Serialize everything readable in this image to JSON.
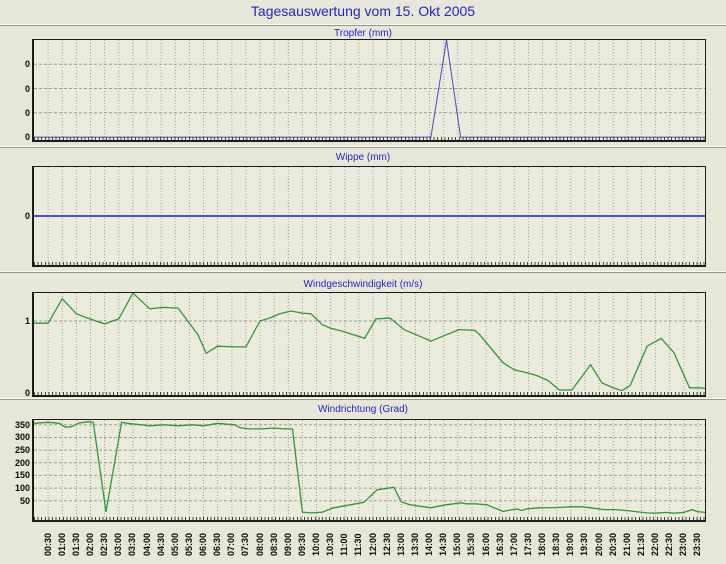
{
  "header": {
    "title": "Tagesauswertung vom 15. Okt 2005"
  },
  "colors": {
    "page_background": "#e7e7d9",
    "plot_background": "#ebebdd",
    "title_blue": "#2323cc",
    "rain_line_blue": "#4848cc",
    "wind_line_green": "#2e9939",
    "grid_grey": "#9c9c94",
    "axis_black": "#1c1c1c"
  },
  "x_axis": {
    "start_hour": 0.5,
    "step_hour": 0.5,
    "labels": [
      "00:30",
      "01:00",
      "01:30",
      "02:00",
      "02:30",
      "03:00",
      "03:30",
      "04:00",
      "04:30",
      "05:00",
      "05:30",
      "06:00",
      "06:30",
      "07:00",
      "07:30",
      "08:00",
      "08:30",
      "09:00",
      "09:30",
      "10:00",
      "10:30",
      "11:00",
      "11:30",
      "12:00",
      "12:30",
      "13:00",
      "13:30",
      "14:00",
      "14:30",
      "15:00",
      "15:30",
      "16:00",
      "16:30",
      "17:00",
      "17:30",
      "18:00",
      "18:30",
      "19:00",
      "19:30",
      "20:00",
      "20:30",
      "21:00",
      "21:30",
      "22:00",
      "22:30",
      "23:00",
      "23:30"
    ]
  },
  "chart_data": [
    {
      "type": "line",
      "name": "tropfer",
      "title": "Tropfer (mm)",
      "color": "#4848cc",
      "line_width": 1,
      "xlim": [
        0,
        23.75
      ],
      "ylim": [
        -0.012,
        0.4
      ],
      "yticks": [
        {
          "v": 0.3,
          "label": "0",
          "grid": true
        },
        {
          "v": 0.2,
          "label": "0",
          "grid": true
        },
        {
          "v": 0.1,
          "label": "0",
          "grid": true
        },
        {
          "v": 0.0,
          "label": "0",
          "grid": false
        }
      ],
      "points": [
        [
          0,
          0
        ],
        [
          14.05,
          0
        ],
        [
          14.6,
          0.4
        ],
        [
          15.1,
          0
        ],
        [
          23.75,
          0
        ]
      ]
    },
    {
      "type": "line",
      "name": "wippe",
      "title": "Wippe (mm)",
      "color": "#5050cc",
      "line_width": 2,
      "xlim": [
        0,
        23.75
      ],
      "ylim": [
        -1,
        1
      ],
      "yticks": [
        {
          "v": 0,
          "label": "0",
          "grid": false
        }
      ],
      "points": [
        [
          0,
          0
        ],
        [
          23.75,
          0
        ]
      ]
    },
    {
      "type": "line",
      "name": "windgeschwindigkeit",
      "title": "Windgeschwindigkeit (m/s)",
      "color": "#2e9939",
      "line_width": 1.3,
      "xlim": [
        0,
        23.75
      ],
      "ylim": [
        -0.03,
        1.39
      ],
      "yticks": [
        {
          "v": 1,
          "label": "1",
          "grid": true
        },
        {
          "v": 0,
          "label": "0",
          "grid": false
        }
      ],
      "points": [
        [
          0,
          0.97
        ],
        [
          0.5,
          0.97
        ],
        [
          1,
          1.31
        ],
        [
          1.5,
          1.1
        ],
        [
          1.9,
          1.04
        ],
        [
          2.5,
          0.96
        ],
        [
          3,
          1.03
        ],
        [
          3.5,
          1.39
        ],
        [
          4.1,
          1.17
        ],
        [
          4.6,
          1.19
        ],
        [
          5.1,
          1.18
        ],
        [
          5.8,
          0.81
        ],
        [
          6.1,
          0.55
        ],
        [
          6.5,
          0.65
        ],
        [
          7.1,
          0.64
        ],
        [
          7.5,
          0.64
        ],
        [
          8,
          1.0
        ],
        [
          8.4,
          1.05
        ],
        [
          8.7,
          1.1
        ],
        [
          9.1,
          1.14
        ],
        [
          9.5,
          1.11
        ],
        [
          9.8,
          1.1
        ],
        [
          10.2,
          0.95
        ],
        [
          10.5,
          0.9
        ],
        [
          10.9,
          0.86
        ],
        [
          11.7,
          0.76
        ],
        [
          12.1,
          1.03
        ],
        [
          12.6,
          1.04
        ],
        [
          12.7,
          1.01
        ],
        [
          13.1,
          0.88
        ],
        [
          14.05,
          0.72
        ],
        [
          15.04,
          0.88
        ],
        [
          15.6,
          0.87
        ],
        [
          15.75,
          0.82
        ],
        [
          16.6,
          0.42
        ],
        [
          17.0,
          0.32
        ],
        [
          17.45,
          0.28
        ],
        [
          17.8,
          0.24
        ],
        [
          18.2,
          0.17
        ],
        [
          18.6,
          0.04
        ],
        [
          19.04,
          0.04
        ],
        [
          19.7,
          0.39
        ],
        [
          20.1,
          0.14
        ],
        [
          20.5,
          0.07
        ],
        [
          20.8,
          0.03
        ],
        [
          21.1,
          0.1
        ],
        [
          21.7,
          0.65
        ],
        [
          22.2,
          0.76
        ],
        [
          22.65,
          0.56
        ],
        [
          23.2,
          0.07
        ],
        [
          23.6,
          0.07
        ],
        [
          23.75,
          0.06
        ]
      ]
    },
    {
      "type": "line",
      "name": "windrichtung",
      "title": "Windrichtung (Grad)",
      "color": "#2e9939",
      "line_width": 1.3,
      "xlim": [
        0,
        23.75
      ],
      "ylim": [
        -26,
        369
      ],
      "yticks": [
        {
          "v": 350,
          "label": "350",
          "grid": true
        },
        {
          "v": 300,
          "label": "300",
          "grid": true
        },
        {
          "v": 250,
          "label": "250",
          "grid": true
        },
        {
          "v": 200,
          "label": "200",
          "grid": true
        },
        {
          "v": 150,
          "label": "150",
          "grid": true
        },
        {
          "v": 100,
          "label": "100",
          "grid": true
        },
        {
          "v": 50,
          "label": "50",
          "grid": true
        }
      ],
      "points": [
        [
          0,
          356
        ],
        [
          0.5,
          360
        ],
        [
          0.9,
          356
        ],
        [
          1.1,
          341
        ],
        [
          1.3,
          342
        ],
        [
          1.6,
          357
        ],
        [
          1.9,
          362
        ],
        [
          2.1,
          360
        ],
        [
          2.55,
          6
        ],
        [
          3.1,
          360
        ],
        [
          3.3,
          356
        ],
        [
          3.8,
          350
        ],
        [
          4.1,
          346
        ],
        [
          4.6,
          350
        ],
        [
          5.1,
          346
        ],
        [
          5.6,
          350
        ],
        [
          6.0,
          346
        ],
        [
          6.5,
          356
        ],
        [
          6.9,
          352
        ],
        [
          7.1,
          350
        ],
        [
          7.3,
          338
        ],
        [
          7.6,
          334
        ],
        [
          8.0,
          334
        ],
        [
          8.5,
          337
        ],
        [
          8.9,
          334
        ],
        [
          9.15,
          334
        ],
        [
          9.5,
          5
        ],
        [
          9.8,
          2
        ],
        [
          10.2,
          5
        ],
        [
          10.6,
          22
        ],
        [
          11.2,
          34
        ],
        [
          11.68,
          44
        ],
        [
          12.14,
          93
        ],
        [
          12.6,
          101
        ],
        [
          12.74,
          103
        ],
        [
          13.0,
          46
        ],
        [
          13.3,
          34
        ],
        [
          13.56,
          30
        ],
        [
          14.05,
          22
        ],
        [
          14.2,
          26
        ],
        [
          14.58,
          34
        ],
        [
          14.87,
          38
        ],
        [
          15.1,
          42
        ],
        [
          15.3,
          38
        ],
        [
          15.6,
          38
        ],
        [
          16.03,
          34
        ],
        [
          16.6,
          8
        ],
        [
          17.1,
          18
        ],
        [
          17.25,
          11
        ],
        [
          17.45,
          18
        ],
        [
          17.9,
          22
        ],
        [
          18.4,
          23
        ],
        [
          19.0,
          26
        ],
        [
          19.4,
          26
        ],
        [
          19.7,
          22
        ],
        [
          20.2,
          15
        ],
        [
          20.6,
          15
        ],
        [
          21.0,
          11
        ],
        [
          21.3,
          7
        ],
        [
          21.7,
          2
        ],
        [
          22.0,
          1
        ],
        [
          22.37,
          4
        ],
        [
          22.65,
          1
        ],
        [
          23.0,
          4
        ],
        [
          23.3,
          15
        ],
        [
          23.47,
          7
        ],
        [
          23.75,
          4
        ]
      ]
    }
  ]
}
